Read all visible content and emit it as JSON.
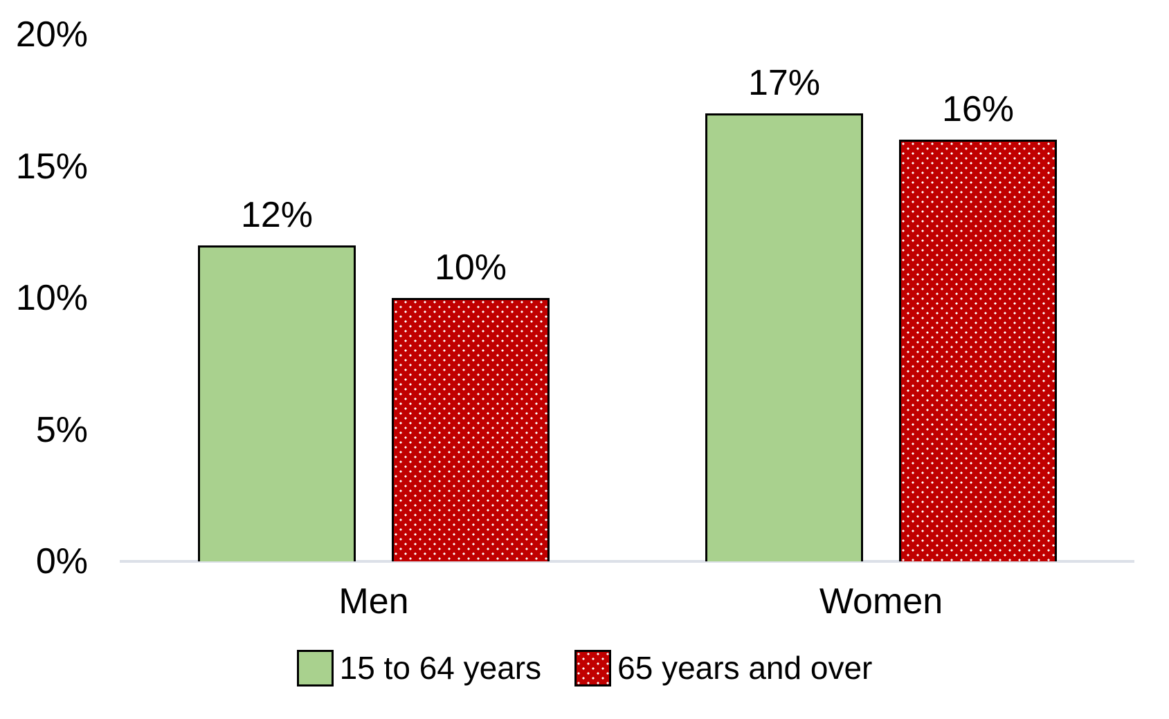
{
  "chart_data": {
    "type": "bar",
    "title": "",
    "xlabel": "",
    "ylabel": "",
    "categories": [
      "Men",
      "Women"
    ],
    "series": [
      {
        "name": "15 to 64 years",
        "fill": "solid",
        "color": "#A9D18E",
        "values": [
          12,
          17
        ],
        "data_labels": [
          "12%",
          "17%"
        ]
      },
      {
        "name": "65 years and over",
        "fill": "dotted",
        "color": "#C00000",
        "dot_color": "#FFFFFF",
        "values": [
          10,
          16
        ],
        "data_labels": [
          "10%",
          "16%"
        ]
      }
    ],
    "ylim": [
      0,
      20
    ],
    "yticks": [
      {
        "value": 0,
        "label": "0%"
      },
      {
        "value": 5,
        "label": "5%"
      },
      {
        "value": 10,
        "label": "10%"
      },
      {
        "value": 15,
        "label": "15%"
      },
      {
        "value": 20,
        "label": "20%"
      }
    ],
    "grid": false,
    "legend_position": "bottom",
    "data_labels_shown": true,
    "bar_border_color": "#000000",
    "axis_line_color": "#DCE0E8",
    "text_color": "#000000",
    "background": "#FFFFFF"
  }
}
